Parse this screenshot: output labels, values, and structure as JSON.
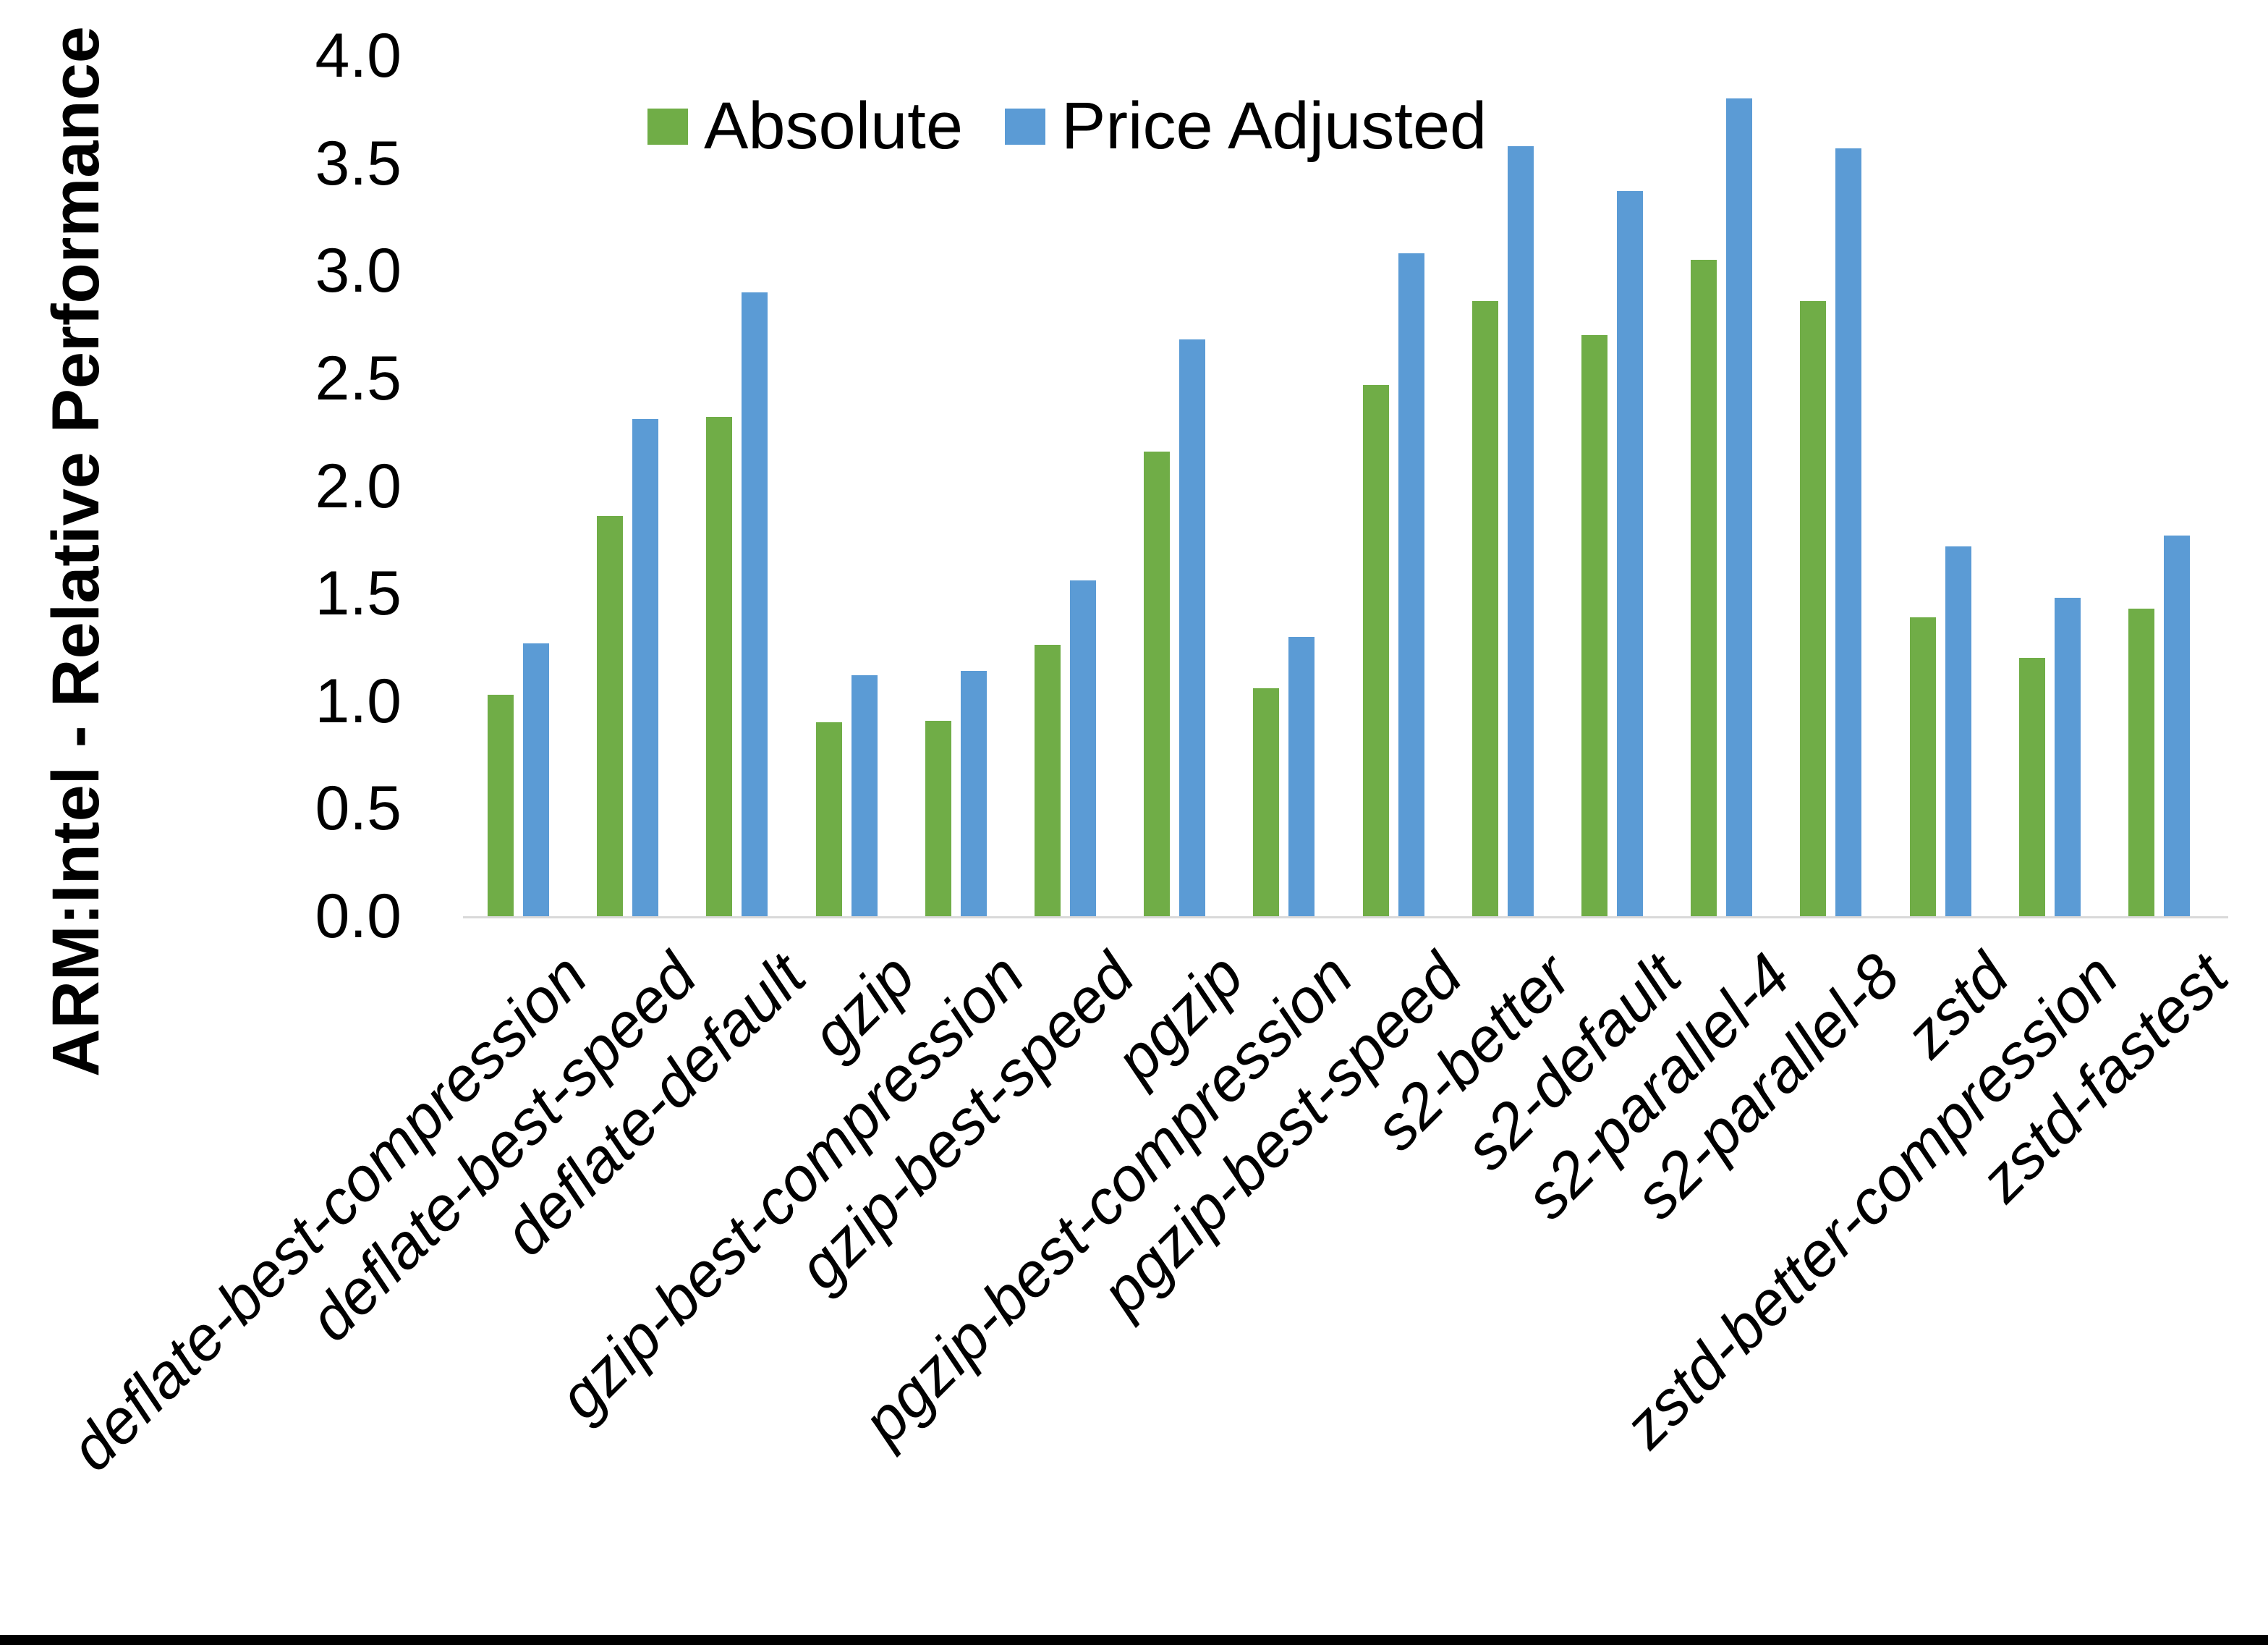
{
  "chart_data": {
    "type": "bar",
    "title": "",
    "xlabel": "",
    "ylabel": "ARM:Intel - Relative Performance",
    "ylim": [
      0.0,
      4.0
    ],
    "ytick_labels": [
      "4.0",
      "3.5",
      "3.0",
      "2.5",
      "2.0",
      "1.5",
      "1.0",
      "0.5",
      "0.0"
    ],
    "grid": false,
    "legend_position": "top-center",
    "categories": [
      "deflate-best-compression",
      "deflate-best-speed",
      "deflate-default",
      "gzip",
      "gzip-best-compression",
      "gzip-best-speed",
      "pgzip",
      "pgzip-best-compression",
      "pgzip-best-speed",
      "s2-better",
      "s2-default",
      "s2-parallel-4",
      "s2-parallel-8",
      "zstd",
      "zstd-better-compression",
      "zstd-fastest"
    ],
    "series": [
      {
        "name": "Absolute",
        "color": "#70AD47",
        "values": [
          1.03,
          1.86,
          2.32,
          0.9,
          0.91,
          1.26,
          2.16,
          1.06,
          2.47,
          2.86,
          2.7,
          3.05,
          2.86,
          1.39,
          1.2,
          1.43
        ]
      },
      {
        "name": "Price Adjusted",
        "color": "#5B9BD5",
        "values": [
          1.27,
          2.31,
          2.9,
          1.12,
          1.14,
          1.56,
          2.68,
          1.3,
          3.08,
          3.58,
          3.37,
          3.8,
          3.57,
          1.72,
          1.48,
          1.77
        ]
      }
    ]
  },
  "colors": {
    "background": "#FFFFFF",
    "axis_line": "#D9D9D9",
    "text": "#000000",
    "bottom_border": "#000000"
  }
}
